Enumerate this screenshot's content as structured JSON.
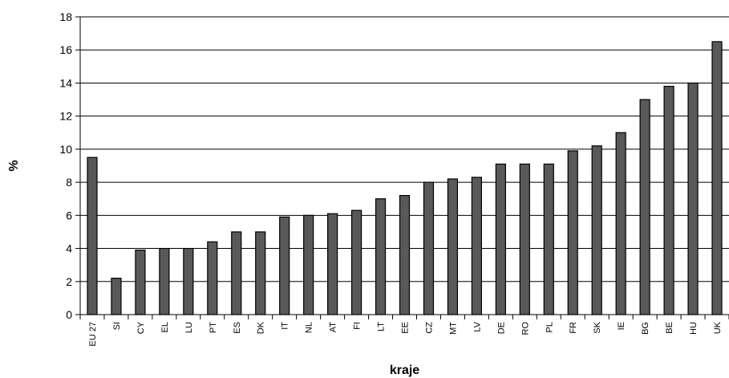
{
  "chart_data": {
    "type": "bar",
    "title": "",
    "xlabel": "kraje",
    "ylabel": "%",
    "ylim": [
      0,
      18
    ],
    "yticks": [
      0,
      2,
      4,
      6,
      8,
      10,
      12,
      14,
      16,
      18
    ],
    "grid": true,
    "legend": "none",
    "bar_color": "#595959",
    "categories": [
      "EU 27",
      "SI",
      "CY",
      "EL",
      "LU",
      "PT",
      "ES",
      "DK",
      "IT",
      "NL",
      "AT",
      "FI",
      "LT",
      "EE",
      "CZ",
      "MT",
      "LV",
      "DE",
      "RO",
      "PL",
      "FR",
      "SK",
      "IE",
      "BG",
      "BE",
      "HU",
      "UK"
    ],
    "values": [
      9.5,
      2.2,
      3.9,
      4.0,
      4.0,
      4.4,
      5.0,
      5.0,
      5.9,
      6.0,
      6.1,
      6.3,
      7.0,
      7.2,
      8.0,
      8.2,
      8.3,
      9.1,
      9.1,
      9.1,
      9.9,
      10.2,
      11.0,
      13.0,
      13.8,
      14.0,
      16.5
    ]
  }
}
